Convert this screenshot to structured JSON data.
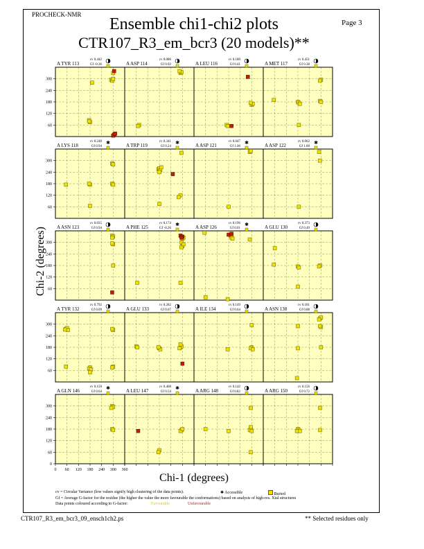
{
  "program": "PROCHECK-NMR",
  "page_label": "Page  3",
  "title_line1": "Ensemble chi1-chi2 plots",
  "title_line2": "CTR107_R3_em_bcr3 (20 models)**",
  "footer_file": "CTR107_R3_em_bcr3_09_ensch1ch2.ps",
  "footer_note": "** Selected residues only",
  "legend": {
    "cv_note": "cv = Circular Variance (low values signify high clustering of the data points).",
    "accessible": "Accessible",
    "buried": "Buried",
    "gf_note": "Gf = Average G-factor for the residue (the higher the value the more favourable the conformations) based on analysis of high-res. Xtal structures",
    "colour_note": "Data points coloured according to G-factor:",
    "favourable": "Favourable",
    "unfavourable": "Unfavourable"
  },
  "colors": {
    "panel_bg": "#ffffc0",
    "favourable": "#f0e000",
    "unfavourable": "#c02000",
    "point_edge": "#606000"
  },
  "chart_data": {
    "type": "scatter",
    "xlabel": "Chi-1 (degrees)",
    "ylabel": "Chi-2 (degrees)",
    "xlim": [
      0,
      360
    ],
    "ylim": [
      0,
      360
    ],
    "xticks": [
      0,
      60,
      120,
      180,
      240,
      300,
      360
    ],
    "xtick_labels": [
      "0",
      "60",
      "120",
      "180",
      "240",
      "300",
      "360"
    ],
    "yticks": [
      60,
      120,
      180,
      240,
      300
    ],
    "bottom_yticks": [
      0,
      60,
      120,
      180,
      240,
      300
    ],
    "grid": true,
    "panels": [
      {
        "residue": "A TYR 113",
        "cv": "0.442",
        "gf": "-0.36",
        "acc": "half",
        "pts": [
          [
            290,
            295
          ],
          [
            295,
            290
          ],
          [
            300,
            300
          ],
          [
            300,
            330
          ],
          [
            190,
            280
          ],
          [
            175,
            85
          ],
          [
            180,
            75
          ],
          [
            175,
            80
          ]
        ],
        "bad": [
          [
            305,
            340
          ],
          [
            305,
            10
          ],
          [
            300,
            5
          ],
          [
            310,
            15
          ]
        ]
      },
      {
        "residue": "A ASP 114",
        "cv": "0.086",
        "gf": "0.93",
        "acc": "half",
        "pts": [
          [
            290,
            330
          ],
          [
            295,
            335
          ],
          [
            285,
            340
          ],
          [
            75,
            60
          ],
          [
            70,
            55
          ]
        ],
        "bad": []
      },
      {
        "residue": "A LEU 116",
        "cv": "0.180",
        "gf": "0.41",
        "acc": "half",
        "pts": [
          [
            300,
            165
          ],
          [
            305,
            170
          ],
          [
            295,
            175
          ],
          [
            170,
            60
          ],
          [
            175,
            55
          ]
        ],
        "bad": [
          [
            280,
            310
          ],
          [
            195,
            55
          ]
        ]
      },
      {
        "residue": "A MET 117",
        "cv": "0.451",
        "gf": "0.38",
        "acc": "half",
        "pts": [
          [
            300,
            295
          ],
          [
            295,
            290
          ],
          [
            55,
            190
          ],
          [
            180,
            180
          ],
          [
            185,
            175
          ],
          [
            190,
            170
          ],
          [
            185,
            60
          ],
          [
            295,
            185
          ],
          [
            300,
            180
          ]
        ],
        "bad": []
      },
      {
        "residue": "A LYS 118",
        "cv": "0.248",
        "gf": "0.94",
        "acc": "star",
        "pts": [
          [
            55,
            175
          ],
          [
            180,
            175
          ],
          [
            175,
            180
          ],
          [
            295,
            180
          ],
          [
            300,
            175
          ],
          [
            295,
            285
          ],
          [
            300,
            280
          ],
          [
            180,
            65
          ]
        ],
        "bad": []
      },
      {
        "residue": "A TRP 119",
        "cv": "0.341",
        "gf": "0.24",
        "acc": "star",
        "pts": [
          [
            175,
            255
          ],
          [
            180,
            260
          ],
          [
            185,
            250
          ],
          [
            180,
            240
          ],
          [
            190,
            265
          ],
          [
            295,
            340
          ],
          [
            290,
            120
          ],
          [
            280,
            110
          ],
          [
            180,
            75
          ]
        ],
        "bad": [
          [
            250,
            230
          ]
        ]
      },
      {
        "residue": "A ASP 121",
        "cv": "0.047",
        "gf": "1.06",
        "acc": "star",
        "pts": [
          [
            290,
            345
          ],
          [
            295,
            350
          ],
          [
            180,
            60
          ]
        ],
        "bad": []
      },
      {
        "residue": "A ASP 122",
        "cv": "0.062",
        "gf": "1.00",
        "acc": "star",
        "pts": [
          [
            290,
            345
          ],
          [
            295,
            300
          ],
          [
            185,
            60
          ]
        ],
        "bad": []
      },
      {
        "residue": "A ASN 123",
        "cv": "0.035",
        "gf": "0.94",
        "acc": "half",
        "pts": [
          [
            295,
            335
          ],
          [
            300,
            330
          ],
          [
            295,
            325
          ],
          [
            300,
            290
          ],
          [
            295,
            295
          ],
          [
            300,
            180
          ]
        ],
        "bad": [
          [
            295,
            40
          ]
        ]
      },
      {
        "residue": "A PHE 125",
        "cv": "0.174",
        "gf": "-0.26",
        "acc": "star",
        "pts": [
          [
            300,
            320
          ],
          [
            305,
            325
          ],
          [
            295,
            300
          ],
          [
            300,
            280
          ],
          [
            295,
            275
          ],
          [
            305,
            290
          ],
          [
            65,
            90
          ],
          [
            290,
            90
          ]
        ],
        "bad": [
          [
            290,
            335
          ],
          [
            300,
            330
          ],
          [
            295,
            325
          ]
        ]
      },
      {
        "residue": "A ASP 126",
        "cv": "0.196",
        "gf": "0.01",
        "acc": "star",
        "pts": [
          [
            55,
            350
          ],
          [
            190,
            335
          ],
          [
            195,
            325
          ],
          [
            200,
            320
          ],
          [
            290,
            315
          ],
          [
            60,
            15
          ],
          [
            175,
            5
          ]
        ],
        "bad": [
          [
            180,
            340
          ],
          [
            195,
            345
          ]
        ]
      },
      {
        "residue": "A GLU 130",
        "cv": "0.373",
        "gf": "0.49",
        "acc": "half",
        "pts": [
          [
            60,
            270
          ],
          [
            55,
            185
          ],
          [
            180,
            175
          ],
          [
            185,
            170
          ],
          [
            295,
            180
          ],
          [
            290,
            175
          ],
          [
            180,
            70
          ]
        ],
        "bad": []
      },
      {
        "residue": "A TYR 132",
        "cv": "0.792",
        "gf": "0.09",
        "acc": "half",
        "pts": [
          [
            55,
            275
          ],
          [
            60,
            280
          ],
          [
            65,
            270
          ],
          [
            50,
            272
          ],
          [
            300,
            270
          ],
          [
            295,
            275
          ],
          [
            180,
            75
          ],
          [
            175,
            70
          ],
          [
            185,
            65
          ],
          [
            180,
            50
          ],
          [
            300,
            80
          ],
          [
            295,
            75
          ],
          [
            55,
            80
          ]
        ],
        "bad": []
      },
      {
        "residue": "A GLU 133",
        "cv": "0.282",
        "gf": "0.67",
        "acc": "half",
        "pts": [
          [
            60,
            185
          ],
          [
            65,
            180
          ],
          [
            180,
            175
          ],
          [
            185,
            170
          ],
          [
            175,
            180
          ],
          [
            290,
            180
          ],
          [
            295,
            185
          ],
          [
            285,
            175
          ],
          [
            290,
            195
          ]
        ],
        "bad": [
          [
            300,
            95
          ]
        ]
      },
      {
        "residue": "A ILE 134",
        "cv": "0.149",
        "gf": "0.64",
        "acc": "half",
        "pts": [
          [
            300,
            295
          ],
          [
            300,
            180
          ],
          [
            295,
            175
          ],
          [
            305,
            170
          ],
          [
            175,
            170
          ]
        ],
        "bad": []
      },
      {
        "residue": "A ASN 138",
        "cv": "0.181",
        "gf": "0.88",
        "acc": "half",
        "pts": [
          [
            295,
            330
          ],
          [
            300,
            335
          ],
          [
            290,
            325
          ],
          [
            300,
            285
          ],
          [
            295,
            290
          ],
          [
            180,
            290
          ],
          [
            300,
            180
          ],
          [
            180,
            175
          ],
          [
            175,
            20
          ]
        ],
        "bad": []
      },
      {
        "residue": "A GLN 146",
        "cv": "0.150",
        "gf": "0.64",
        "acc": "star",
        "pts": [
          [
            295,
            300
          ],
          [
            300,
            295
          ],
          [
            290,
            290
          ],
          [
            295,
            180
          ],
          [
            300,
            175
          ]
        ],
        "bad": []
      },
      {
        "residue": "A LEU 147",
        "cv": "0.468",
        "gf": "0.54",
        "acc": "star",
        "pts": [
          [
            295,
            175
          ],
          [
            290,
            170
          ],
          [
            300,
            180
          ],
          [
            180,
            70
          ],
          [
            175,
            60
          ]
        ],
        "bad": [
          [
            70,
            170
          ]
        ]
      },
      {
        "residue": "A ARG 148",
        "cv": "0.142",
        "gf": "0.82",
        "acc": "half",
        "pts": [
          [
            295,
            290
          ],
          [
            60,
            180
          ],
          [
            180,
            170
          ],
          [
            295,
            180
          ],
          [
            290,
            175
          ],
          [
            295,
            190
          ],
          [
            300,
            170
          ],
          [
            295,
            60
          ]
        ],
        "bad": []
      },
      {
        "residue": "A ARG 150",
        "cv": "0.156",
        "gf": "0.72",
        "acc": "half",
        "pts": [
          [
            295,
            290
          ],
          [
            180,
            180
          ],
          [
            185,
            175
          ],
          [
            175,
            170
          ],
          [
            190,
            170
          ],
          [
            295,
            175
          ]
        ],
        "bad": []
      }
    ]
  }
}
